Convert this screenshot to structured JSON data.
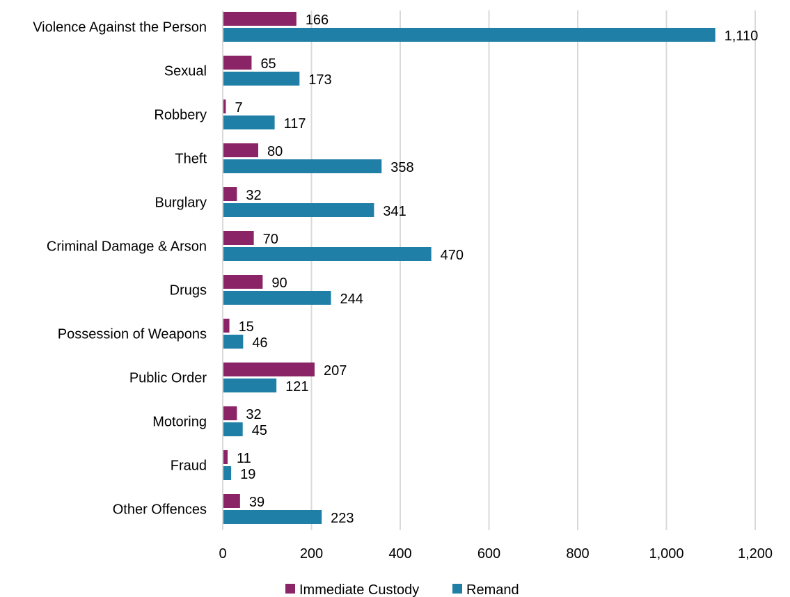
{
  "chart_data": {
    "type": "bar",
    "orientation": "horizontal",
    "categories": [
      "Violence Against the Person",
      "Sexual",
      "Robbery",
      "Theft",
      "Burglary",
      "Criminal Damage & Arson",
      "Drugs",
      "Possession of Weapons",
      "Public Order",
      "Motoring",
      "Fraud",
      "Other Offences"
    ],
    "series": [
      {
        "name": "Immediate Custody",
        "color": "#8B2466",
        "values": [
          166,
          65,
          7,
          80,
          32,
          70,
          90,
          15,
          207,
          32,
          11,
          39
        ],
        "labels": [
          "166",
          "65",
          "7",
          "80",
          "32",
          "70",
          "90",
          "15",
          "207",
          "32",
          "11",
          "39"
        ]
      },
      {
        "name": "Remand",
        "color": "#1F7FA6",
        "values": [
          1110,
          173,
          117,
          358,
          341,
          470,
          244,
          46,
          121,
          45,
          19,
          223
        ],
        "labels": [
          "1,110",
          "173",
          "117",
          "358",
          "341",
          "470",
          "244",
          "46",
          "121",
          "45",
          "19",
          "223"
        ]
      }
    ],
    "xlim": [
      0,
      1200
    ],
    "xticks": [
      0,
      200,
      400,
      600,
      800,
      1000,
      1200
    ],
    "xtick_labels": [
      "0",
      "200",
      "400",
      "600",
      "800",
      "1,000",
      "1,200"
    ],
    "grid": "vertical",
    "gridline_color": "#D9D9D9",
    "legend_position": "bottom",
    "title": "",
    "xlabel": "",
    "ylabel": ""
  }
}
